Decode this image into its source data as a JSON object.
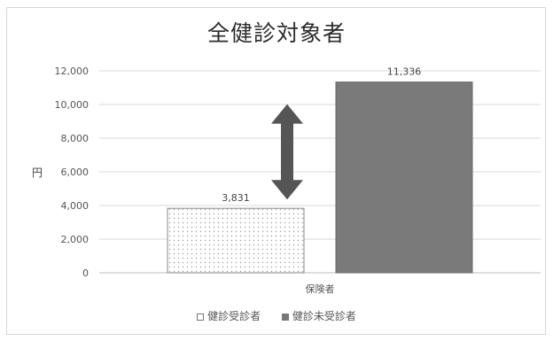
{
  "chart_data": {
    "type": "bar",
    "title": "全健診対象者",
    "ylabel": "円",
    "xlabel": "",
    "categories": [
      "保険者"
    ],
    "series": [
      {
        "name": "健診受診者",
        "values": [
          3831
        ],
        "label": "3,831",
        "color": "#ffffff",
        "pattern": "dots"
      },
      {
        "name": "健診未受診者",
        "values": [
          11336
        ],
        "label": "11,336",
        "color": "#7a7a7a",
        "pattern": "solid"
      }
    ],
    "ylim": [
      0,
      12000
    ],
    "yticks": [
      0,
      2000,
      4000,
      6000,
      8000,
      10000,
      12000
    ],
    "ytick_labels": [
      "0",
      "2,000",
      "4,000",
      "6,000",
      "8,000",
      "10,000",
      "12,000"
    ],
    "grid": true,
    "legend_position": "bottom",
    "annotation": "double-headed arrow between bars"
  }
}
